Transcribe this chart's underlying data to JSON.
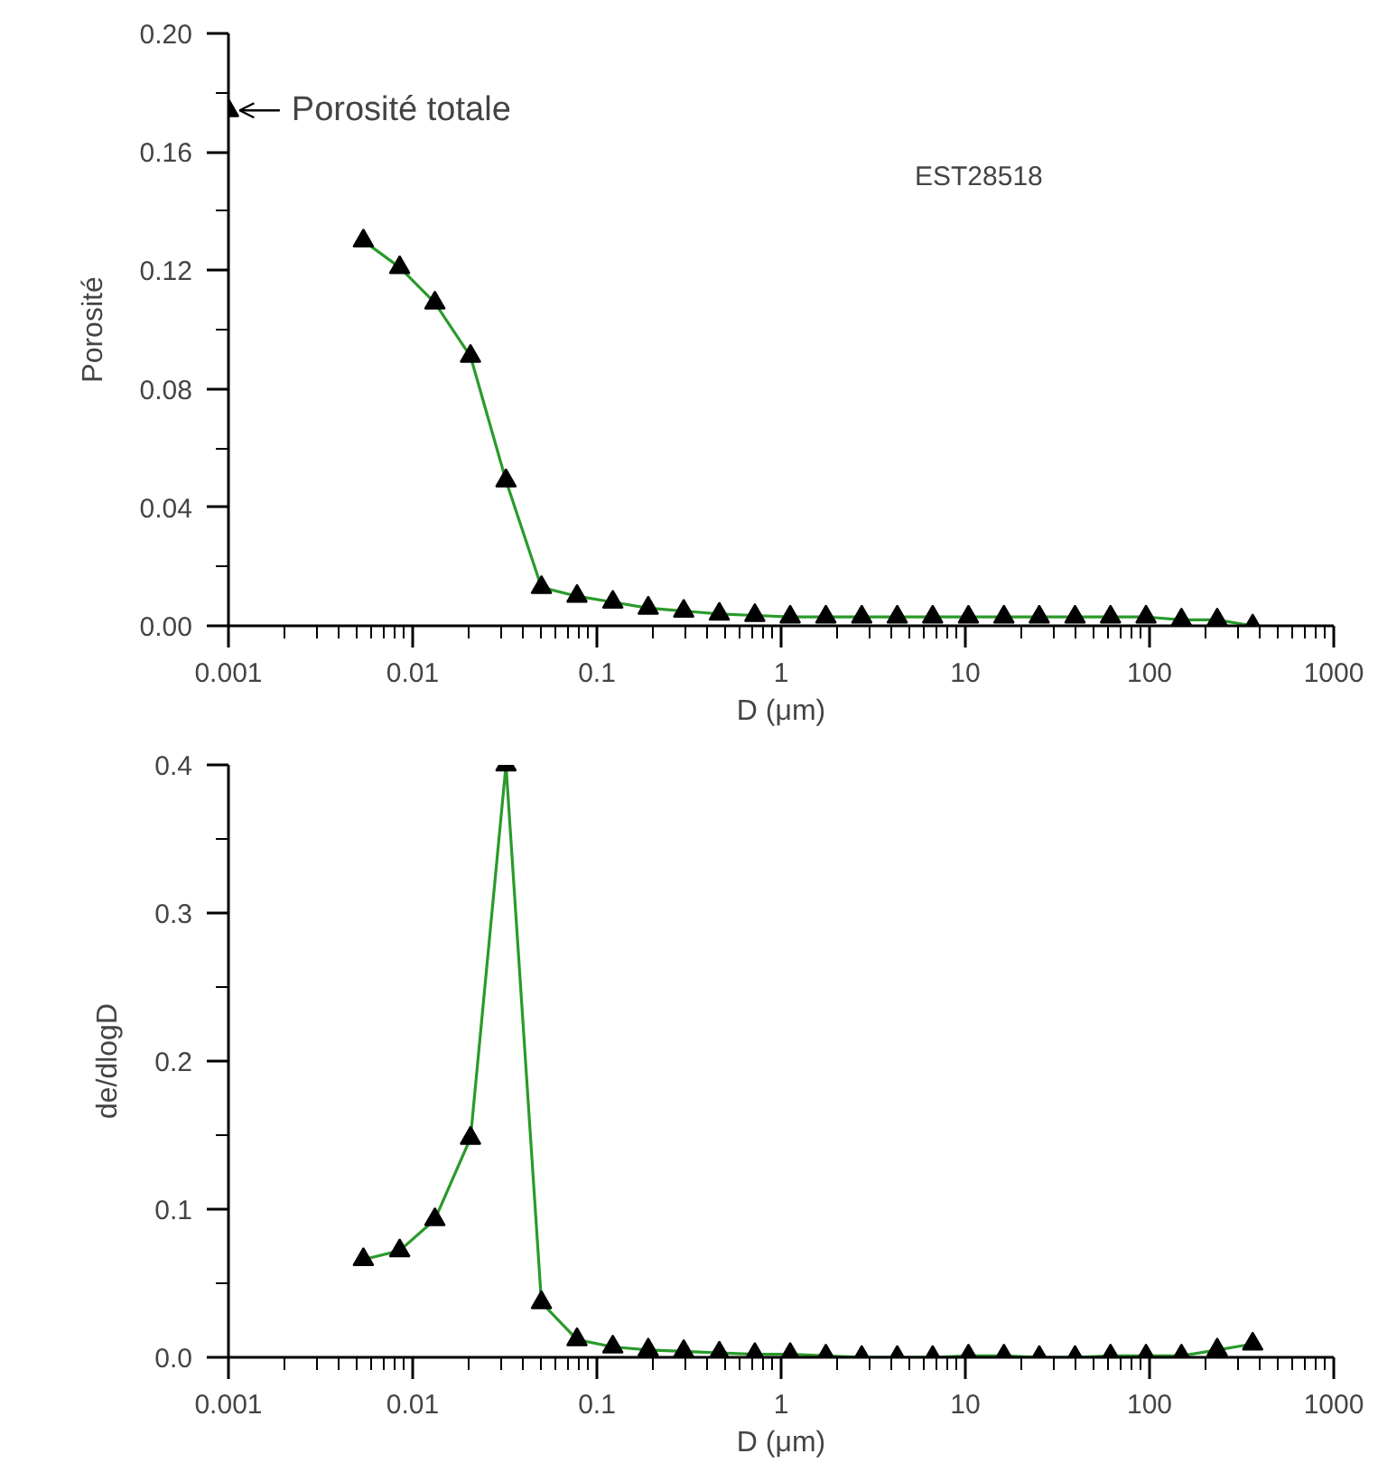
{
  "chart_data": [
    {
      "type": "line",
      "xlabel": "D (μm)",
      "ylabel": "Porosité",
      "log": "x",
      "grid": false,
      "xlim": [
        0.001,
        1000
      ],
      "xticks": [
        0.001,
        0.01,
        0.1,
        1,
        10,
        100,
        1000
      ],
      "ylim": [
        0,
        0.2
      ],
      "yticks": [
        {
          "value": 0,
          "label": "0.00"
        },
        {
          "value": 0.02,
          "label": null
        },
        0.04,
        {
          "value": 0.06,
          "label": null
        },
        0.08,
        {
          "value": 0.1,
          "label": null
        },
        0.12,
        {
          "value": 0.14,
          "label": null
        },
        0.16,
        {
          "value": 0.18,
          "label": null
        },
        {
          "value": 0.2,
          "label": "0.20"
        }
      ],
      "x": [
        0.0054,
        0.0085,
        0.0132,
        0.0206,
        0.0321,
        0.05,
        0.078,
        0.122,
        0.19,
        0.296,
        0.462,
        0.72,
        1.12,
        1.75,
        2.74,
        4.27,
        6.65,
        10.4,
        16.2,
        25.2,
        39.4,
        61.4,
        95.7,
        149,
        233,
        363
      ],
      "series": [
        {
          "color": "#2a9a2a",
          "marker": "none",
          "values": [
            0.13,
            0.121,
            0.109,
            0.091,
            0.049,
            0.013,
            0.01,
            0.008,
            0.006,
            0.005,
            0.004,
            0.0035,
            0.003,
            0.003,
            0.003,
            0.003,
            0.003,
            0.003,
            0.003,
            0.003,
            0.003,
            0.003,
            0.003,
            0.002,
            0.002,
            0.0
          ]
        },
        {
          "type": "scatter",
          "color": "#000000",
          "marker": "triangle",
          "values": [
            0.13,
            0.121,
            0.109,
            0.091,
            0.049,
            0.013,
            0.01,
            0.008,
            0.006,
            0.005,
            0.004,
            0.0035,
            0.003,
            0.003,
            0.003,
            0.003,
            0.003,
            0.003,
            0.003,
            0.003,
            0.003,
            0.003,
            0.003,
            0.002,
            0.002,
            0.0
          ]
        },
        {
          "type": "scatter",
          "color": "#000000",
          "marker": "triangle",
          "x": [
            0.001
          ],
          "values": [
            0.174
          ]
        }
      ],
      "annotations": [
        {
          "text": "Porosité totale",
          "x": 0.001,
          "y": 0.174
        },
        "EST28518"
      ]
    },
    {
      "type": "line",
      "xlabel": "D (μm)",
      "ylabel": "de/dlogD",
      "log": "x",
      "grid": false,
      "xlim": [
        0.001,
        1000
      ],
      "xticks": [
        0.001,
        0.01,
        0.1,
        1,
        10,
        100,
        1000
      ],
      "ylim": [
        0,
        0.4
      ],
      "yticks": [
        {
          "value": 0,
          "label": "0.0"
        },
        {
          "value": 0.05,
          "label": null
        },
        0.1,
        {
          "value": 0.15,
          "label": null
        },
        0.2,
        {
          "value": 0.25,
          "label": null
        },
        0.3,
        {
          "value": 0.35,
          "label": null
        },
        0.4
      ],
      "x": [
        0.0054,
        0.0085,
        0.0132,
        0.0206,
        0.0321,
        0.05,
        0.078,
        0.122,
        0.19,
        0.296,
        0.462,
        0.72,
        1.12,
        1.75,
        2.74,
        4.27,
        6.65,
        10.4,
        16.2,
        25.2,
        39.4,
        61.4,
        95.7,
        149,
        233,
        363
      ],
      "series": [
        {
          "color": "#2a9a2a",
          "marker": "none",
          "values": [
            0.066,
            0.072,
            0.093,
            0.148,
            0.4,
            0.037,
            0.012,
            0.007,
            0.005,
            0.004,
            0.003,
            0.002,
            0.002,
            0.001,
            0.0,
            0.0,
            0.0,
            0.001,
            0.001,
            0.0,
            0.0,
            0.001,
            0.001,
            0.001,
            0.005,
            0.009
          ]
        },
        {
          "type": "scatter",
          "color": "#000000",
          "marker": "triangle",
          "values": [
            0.066,
            0.072,
            0.093,
            0.148,
            0.4,
            0.037,
            0.012,
            0.007,
            0.005,
            0.004,
            0.003,
            0.002,
            0.002,
            0.001,
            0.0,
            0.0,
            0.0,
            0.001,
            0.001,
            0.0,
            0.0,
            0.001,
            0.001,
            0.001,
            0.005,
            0.009
          ]
        }
      ]
    }
  ]
}
